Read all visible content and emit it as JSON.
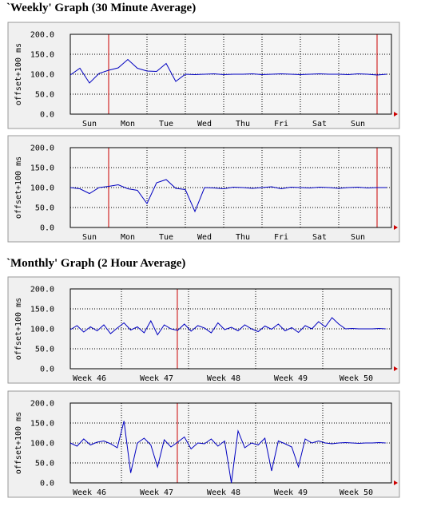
{
  "headings": [
    "`Weekly' Graph (30 Minute Average)",
    "`Monthly' Graph (2 Hour Average)"
  ],
  "chart_data": [
    {
      "type": "line",
      "ylabel": "offset+100 ms",
      "color": "#0000c0",
      "marker_color": "#cc0000",
      "grid": true,
      "ylim": [
        0,
        200
      ],
      "yticks": [
        {
          "value": 0,
          "label": "0.0"
        },
        {
          "value": 50,
          "label": "50.0"
        },
        {
          "value": 100,
          "label": "100.0"
        },
        {
          "value": 150,
          "label": "150.0"
        },
        {
          "value": 200,
          "label": "200.0"
        }
      ],
      "xlim": [
        0,
        8.375
      ],
      "xticks": [
        {
          "value": 0.5,
          "label": "Sun"
        },
        {
          "value": 1.5,
          "label": "Mon"
        },
        {
          "value": 2.5,
          "label": "Tue"
        },
        {
          "value": 3.5,
          "label": "Wed"
        },
        {
          "value": 4.5,
          "label": "Thu"
        },
        {
          "value": 5.5,
          "label": "Fri"
        },
        {
          "value": 6.5,
          "label": "Sat"
        },
        {
          "value": 7.5,
          "label": "Sun"
        }
      ],
      "xgrid": [
        2,
        3,
        4,
        5,
        6,
        7
      ],
      "markers": [
        1,
        8
      ],
      "x": [
        0,
        0.25,
        0.5,
        0.75,
        1,
        1.25,
        1.5,
        1.75,
        2,
        2.25,
        2.5,
        2.75,
        3,
        3.25,
        3.5,
        3.75,
        4,
        4.25,
        4.5,
        4.75,
        5,
        5.25,
        5.5,
        5.75,
        6,
        6.25,
        6.5,
        6.75,
        7,
        7.25,
        7.5,
        7.75,
        8,
        8.25
      ],
      "values": [
        98,
        115,
        78,
        102,
        110,
        116,
        137,
        115,
        108,
        107,
        127,
        82,
        100,
        99,
        100,
        101,
        99,
        100,
        100,
        101,
        99,
        100,
        101,
        100,
        99,
        100,
        101,
        100,
        100,
        99,
        101,
        100,
        98,
        100
      ]
    },
    {
      "type": "line",
      "ylabel": "offset+100 ms",
      "color": "#0000c0",
      "marker_color": "#cc0000",
      "grid": true,
      "ylim": [
        0,
        200
      ],
      "yticks": [
        {
          "value": 0,
          "label": "0.0"
        },
        {
          "value": 50,
          "label": "50.0"
        },
        {
          "value": 100,
          "label": "100.0"
        },
        {
          "value": 150,
          "label": "150.0"
        },
        {
          "value": 200,
          "label": "200.0"
        }
      ],
      "xlim": [
        0,
        8.375
      ],
      "xticks": [
        {
          "value": 0.5,
          "label": "Sun"
        },
        {
          "value": 1.5,
          "label": "Mon"
        },
        {
          "value": 2.5,
          "label": "Tue"
        },
        {
          "value": 3.5,
          "label": "Wed"
        },
        {
          "value": 4.5,
          "label": "Thu"
        },
        {
          "value": 5.5,
          "label": "Fri"
        },
        {
          "value": 6.5,
          "label": "Sat"
        },
        {
          "value": 7.5,
          "label": "Sun"
        }
      ],
      "xgrid": [
        2,
        3,
        4,
        5,
        6,
        7
      ],
      "markers": [
        1,
        8
      ],
      "x": [
        0,
        0.25,
        0.5,
        0.75,
        1,
        1.25,
        1.5,
        1.75,
        2,
        2.25,
        2.5,
        2.75,
        3,
        3.25,
        3.5,
        3.75,
        4,
        4.25,
        4.5,
        4.75,
        5,
        5.25,
        5.5,
        5.75,
        6,
        6.25,
        6.5,
        6.75,
        7,
        7.25,
        7.5,
        7.75,
        8,
        8.25
      ],
      "values": [
        100,
        97,
        85,
        100,
        103,
        107,
        97,
        93,
        60,
        112,
        120,
        98,
        95,
        40,
        100,
        99,
        97,
        101,
        100,
        98,
        100,
        102,
        97,
        101,
        100,
        99,
        101,
        100,
        98,
        100,
        101,
        99,
        100,
        100
      ]
    },
    {
      "type": "line",
      "ylabel": "offset+100 ms",
      "color": "#0000c0",
      "marker_color": "#cc0000",
      "grid": true,
      "ylim": [
        0,
        200
      ],
      "yticks": [
        {
          "value": 0,
          "label": "0.0"
        },
        {
          "value": 50,
          "label": "50.0"
        },
        {
          "value": 100,
          "label": "100.0"
        },
        {
          "value": 150,
          "label": "150.0"
        },
        {
          "value": 200,
          "label": "200.0"
        }
      ],
      "xlim": [
        0,
        4.786
      ],
      "xticks": [
        {
          "value": 0.286,
          "label": "Week 46"
        },
        {
          "value": 1.286,
          "label": "Week 47"
        },
        {
          "value": 2.286,
          "label": "Week 48"
        },
        {
          "value": 3.286,
          "label": "Week 49"
        },
        {
          "value": 4.262,
          "label": "Week 50"
        }
      ],
      "xgrid": [
        0.762,
        1.762,
        2.762,
        3.762
      ],
      "markers": [
        1.595
      ],
      "x": [
        0,
        0.1,
        0.2,
        0.3,
        0.4,
        0.5,
        0.6,
        0.7,
        0.8,
        0.9,
        1,
        1.1,
        1.2,
        1.3,
        1.4,
        1.5,
        1.6,
        1.7,
        1.8,
        1.9,
        2,
        2.1,
        2.2,
        2.3,
        2.4,
        2.5,
        2.6,
        2.7,
        2.8,
        2.9,
        3,
        3.1,
        3.2,
        3.3,
        3.4,
        3.5,
        3.6,
        3.7,
        3.8,
        3.9,
        4,
        4.1,
        4.2,
        4.3,
        4.4,
        4.5,
        4.6,
        4.7
      ],
      "values": [
        98,
        108,
        92,
        105,
        95,
        110,
        88,
        102,
        115,
        97,
        105,
        90,
        120,
        85,
        110,
        100,
        96,
        112,
        94,
        108,
        102,
        90,
        115,
        98,
        104,
        95,
        110,
        100,
        93,
        107,
        99,
        112,
        95,
        103,
        91,
        108,
        100,
        118,
        105,
        128,
        112,
        100,
        101,
        100,
        100,
        100,
        101,
        100
      ]
    },
    {
      "type": "line",
      "ylabel": "offset+100 ms",
      "color": "#0000c0",
      "marker_color": "#cc0000",
      "grid": true,
      "ylim": [
        0,
        200
      ],
      "yticks": [
        {
          "value": 0,
          "label": "0.0"
        },
        {
          "value": 50,
          "label": "50.0"
        },
        {
          "value": 100,
          "label": "100.0"
        },
        {
          "value": 150,
          "label": "150.0"
        },
        {
          "value": 200,
          "label": "200.0"
        }
      ],
      "xlim": [
        0,
        4.786
      ],
      "xticks": [
        {
          "value": 0.286,
          "label": "Week 46"
        },
        {
          "value": 1.286,
          "label": "Week 47"
        },
        {
          "value": 2.286,
          "label": "Week 48"
        },
        {
          "value": 3.286,
          "label": "Week 49"
        },
        {
          "value": 4.262,
          "label": "Week 50"
        }
      ],
      "xgrid": [
        0.762,
        1.762,
        2.762,
        3.762
      ],
      "markers": [
        1.595
      ],
      "x": [
        0,
        0.1,
        0.2,
        0.3,
        0.4,
        0.5,
        0.6,
        0.7,
        0.8,
        0.9,
        1,
        1.1,
        1.2,
        1.3,
        1.4,
        1.5,
        1.6,
        1.7,
        1.8,
        1.9,
        2,
        2.1,
        2.2,
        2.3,
        2.4,
        2.5,
        2.6,
        2.7,
        2.8,
        2.9,
        3,
        3.1,
        3.2,
        3.3,
        3.4,
        3.5,
        3.6,
        3.7,
        3.8,
        3.9,
        4,
        4.1,
        4.2,
        4.3,
        4.4,
        4.5,
        4.6,
        4.7
      ],
      "values": [
        100,
        92,
        110,
        95,
        102,
        105,
        98,
        88,
        155,
        25,
        100,
        112,
        95,
        40,
        108,
        90,
        102,
        115,
        85,
        100,
        98,
        110,
        92,
        105,
        0,
        130,
        88,
        100,
        95,
        112,
        30,
        105,
        98,
        90,
        40,
        110,
        100,
        105,
        100,
        98,
        100,
        101,
        100,
        99,
        100,
        100,
        101,
        100
      ]
    }
  ]
}
